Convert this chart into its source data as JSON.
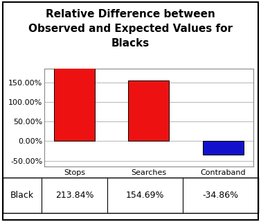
{
  "title": "Relative Difference between\nObserved and Expected Values for\nBlacks",
  "categories": [
    "Stops",
    "Searches",
    "Contraband"
  ],
  "values": [
    213.84,
    154.69,
    -34.86
  ],
  "bar_colors": [
    "#ee1111",
    "#ee1111",
    "#1111cc"
  ],
  "row_label": "Black",
  "row_values": [
    "213.84%",
    "154.69%",
    "-34.86%"
  ],
  "ylim": [
    -65,
    185
  ],
  "yticks": [
    -50.0,
    0.0,
    50.0,
    100.0,
    150.0
  ],
  "background_color": "#ffffff",
  "outer_border_color": "#000000",
  "title_fontsize": 11,
  "tick_fontsize": 8,
  "table_fontsize": 9,
  "figsize": [
    3.77,
    3.2
  ],
  "dpi": 100
}
